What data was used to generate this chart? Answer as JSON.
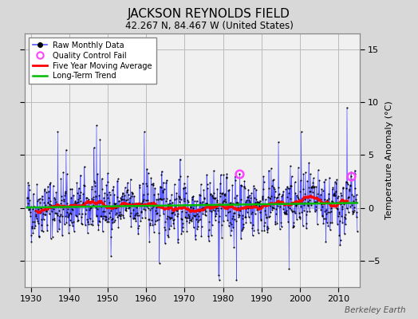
{
  "title": "JACKSON REYNOLDS FIELD",
  "subtitle": "42.267 N, 84.467 W (United States)",
  "ylabel": "Temperature Anomaly (°C)",
  "watermark": "Berkeley Earth",
  "start_year": 1929,
  "end_year": 2014,
  "ylim": [
    -7.5,
    16.5
  ],
  "yticks": [
    -5,
    0,
    5,
    10,
    15
  ],
  "xlim": [
    1928.5,
    2015.5
  ],
  "xticks": [
    1930,
    1940,
    1950,
    1960,
    1970,
    1980,
    1990,
    2000,
    2010
  ],
  "bg_color": "#d8d8d8",
  "plot_bg_color": "#f0f0f0",
  "grid_color": "#bbbbbb",
  "raw_line_color": "#5555ff",
  "raw_fill_color": "#aaaaff",
  "raw_dot_color": "#000000",
  "moving_avg_color": "#ff0000",
  "trend_color": "#00bb00",
  "qc_fail_color": "#ff44ff",
  "seed": 42
}
